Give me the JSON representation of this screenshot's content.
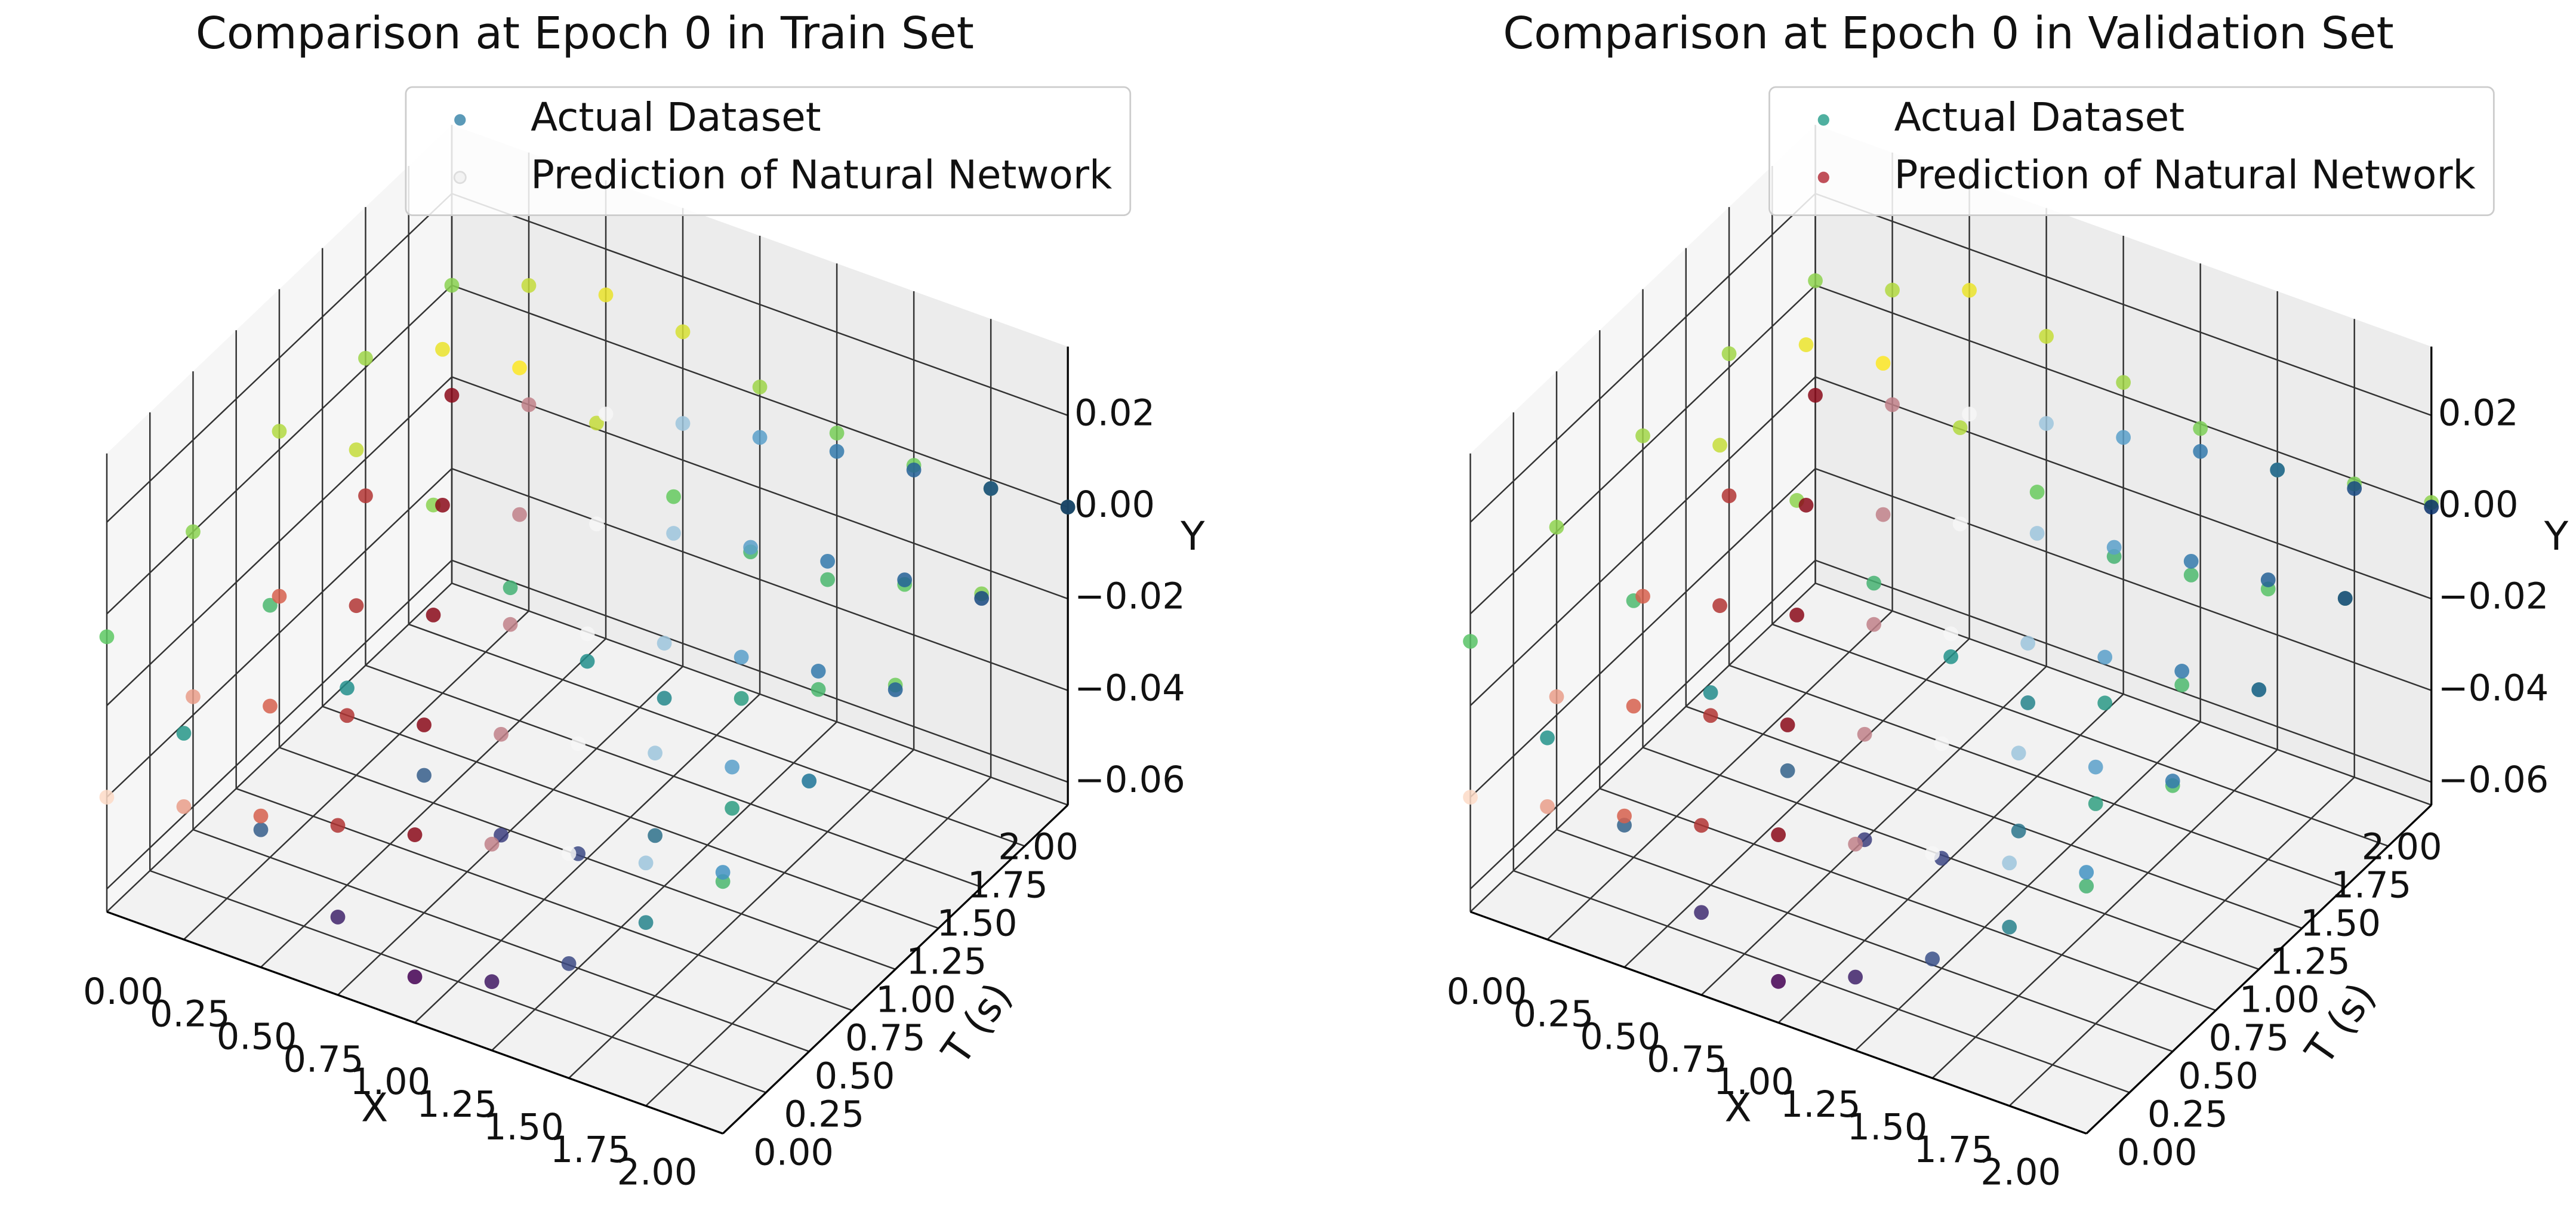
{
  "chart_data": [
    {
      "type": "scatter3d",
      "title": "Comparison at Epoch 0 in Train Set",
      "xlabel": "X",
      "tlabel": "T (s)",
      "ylabel": "Y",
      "xlim": [
        0,
        2
      ],
      "tlim": [
        0,
        2
      ],
      "ylim": [
        -0.065,
        0.035
      ],
      "xticks": [
        {
          "value": 0,
          "label": "0.00"
        },
        {
          "value": 0.25,
          "label": "0.25"
        },
        {
          "value": 0.5,
          "label": "0.50"
        },
        {
          "value": 0.75,
          "label": "0.75"
        },
        {
          "value": 1,
          "label": "1.00"
        },
        {
          "value": 1.25,
          "label": "1.25"
        },
        {
          "value": 1.5,
          "label": "1.50"
        },
        {
          "value": 1.75,
          "label": "1.75"
        },
        {
          "value": 2,
          "label": "2.00"
        }
      ],
      "tticks": [
        {
          "value": 0,
          "label": "0.00"
        },
        {
          "value": 0.25,
          "label": "0.25"
        },
        {
          "value": 0.5,
          "label": "0.50"
        },
        {
          "value": 0.75,
          "label": "0.75"
        },
        {
          "value": 1,
          "label": "1.00"
        },
        {
          "value": 1.25,
          "label": "1.25"
        },
        {
          "value": 1.5,
          "label": "1.50"
        },
        {
          "value": 1.75,
          "label": "1.75"
        },
        {
          "value": 2,
          "label": "2.00"
        }
      ],
      "yticks": [
        {
          "value": -0.06,
          "label": "−0.06"
        },
        {
          "value": -0.04,
          "label": "−0.04"
        },
        {
          "value": -0.02,
          "label": "−0.02"
        },
        {
          "value": 0,
          "label": "0.00"
        },
        0.02
      ],
      "series": [
        {
          "name": "Actual Dataset",
          "color": "#5b9ab8",
          "colormap": "viridis",
          "x": [
            0,
            0.25,
            0.5,
            0.75,
            1,
            1.25,
            1.5,
            1.75,
            2,
            0,
            0.25,
            0.5,
            0.75,
            1,
            1.25,
            1.5,
            1.75,
            2,
            0,
            0.25,
            0.5,
            0.75,
            1,
            1.25,
            1.5,
            1.75,
            2,
            0,
            0.25,
            0.5,
            0.75,
            1,
            1.25,
            1.5,
            1.75,
            2,
            0,
            0.25,
            0.5,
            0.75,
            1,
            1.25,
            1.5,
            1.75,
            2
          ],
          "t": [
            0,
            0,
            0,
            0,
            0,
            0,
            0,
            0,
            0,
            0.5,
            0.5,
            0.5,
            0.5,
            0.5,
            0.5,
            0.5,
            0.5,
            0.5,
            1,
            1,
            1,
            1,
            1,
            1,
            1,
            1,
            1,
            1.5,
            1.5,
            1.5,
            1.5,
            1.5,
            1.5,
            1.5,
            1.5,
            1.5,
            2,
            2,
            2,
            2,
            2,
            2,
            2,
            2,
            2
          ],
          "values": [
            -0.005,
            -0.02,
            -0.035,
            -0.048,
            -0.055,
            -0.05,
            -0.04,
            -0.025,
            -0.01,
            0,
            -0.01,
            -0.022,
            -0.035,
            -0.042,
            -0.04,
            -0.03,
            -0.018,
            -0.006,
            0.004,
            0.006,
            0,
            -0.012,
            -0.022,
            -0.024,
            -0.018,
            -0.01,
            -0.003,
            0.002,
            0.01,
            0.012,
            0.006,
            -0.004,
            -0.01,
            -0.01,
            -0.005,
            -0.001,
            0,
            0.006,
            0.01,
            0.008,
            0.002,
            -0.002,
            -0.003,
            -0.002,
            0
          ]
        },
        {
          "name": "Prediction of Natural Network",
          "color": "#f3f3f3",
          "colormap": "RdBu",
          "x": [
            0,
            0.25,
            0.5,
            0.75,
            1,
            1.25,
            1.5,
            1.75,
            2,
            0,
            0.25,
            0.5,
            0.75,
            1,
            1.25,
            1.5,
            1.75,
            2,
            0,
            0.25,
            0.5,
            0.75,
            1,
            1.25,
            1.5,
            1.75,
            2,
            0,
            0.25,
            0.5,
            0.75,
            1,
            1.25,
            1.5,
            1.75,
            2,
            0,
            0.25,
            0.5,
            0.75,
            1,
            1.25,
            1.5,
            1.75,
            2
          ],
          "t": [
            0,
            0,
            0,
            0,
            0,
            0,
            0,
            0,
            0,
            0.5,
            0.5,
            0.5,
            0.5,
            0.5,
            0.5,
            0.5,
            0.5,
            0.5,
            1,
            1,
            1,
            1,
            1,
            1,
            1,
            1,
            1,
            1.5,
            1.5,
            1.5,
            1.5,
            1.5,
            1.5,
            1.5,
            1.5,
            1.5,
            2,
            2,
            2,
            2,
            2,
            2,
            2,
            2,
            2
          ],
          "values": [
            -0.04,
            -0.036,
            -0.032,
            -0.028,
            -0.024,
            -0.02,
            -0.016,
            -0.012,
            -0.008,
            -0.036,
            -0.032,
            -0.028,
            -0.024,
            -0.02,
            -0.016,
            -0.012,
            -0.009,
            -0.006,
            -0.032,
            -0.028,
            -0.024,
            -0.02,
            -0.016,
            -0.012,
            -0.009,
            -0.006,
            -0.004,
            -0.028,
            -0.024,
            -0.02,
            -0.016,
            -0.012,
            -0.009,
            -0.006,
            -0.004,
            -0.002,
            -0.024,
            -0.02,
            -0.016,
            -0.012,
            -0.009,
            -0.006,
            -0.004,
            -0.002,
            0
          ]
        }
      ]
    },
    {
      "type": "scatter3d",
      "title": "Comparison at Epoch 0 in Validation Set",
      "xlabel": "X",
      "tlabel": "T (s)",
      "ylabel": "Y",
      "xlim": [
        0,
        2
      ],
      "tlim": [
        0,
        2
      ],
      "ylim": [
        -0.065,
        0.035
      ],
      "xticks": [
        {
          "value": 0,
          "label": "0.00"
        },
        {
          "value": 0.25,
          "label": "0.25"
        },
        {
          "value": 0.5,
          "label": "0.50"
        },
        {
          "value": 0.75,
          "label": "0.75"
        },
        {
          "value": 1,
          "label": "1.00"
        },
        {
          "value": 1.25,
          "label": "1.25"
        },
        {
          "value": 1.5,
          "label": "1.50"
        },
        {
          "value": 1.75,
          "label": "1.75"
        },
        {
          "value": 2,
          "label": "2.00"
        }
      ],
      "tticks": [
        {
          "value": 0,
          "label": "0.00"
        },
        {
          "value": 0.25,
          "label": "0.25"
        },
        {
          "value": 0.5,
          "label": "0.50"
        },
        {
          "value": 0.75,
          "label": "0.75"
        },
        {
          "value": 1,
          "label": "1.00"
        },
        {
          "value": 1.25,
          "label": "1.25"
        },
        {
          "value": 1.5,
          "label": "1.50"
        },
        {
          "value": 1.75,
          "label": "1.75"
        },
        {
          "value": 2,
          "label": "2.00"
        }
      ],
      "yticks": [
        {
          "value": -0.06,
          "label": "−0.06"
        },
        {
          "value": -0.04,
          "label": "−0.04"
        },
        {
          "value": -0.02,
          "label": "−0.02"
        },
        {
          "value": 0,
          "label": "0.00"
        },
        0.02
      ],
      "series": [
        {
          "name": "Actual Dataset",
          "color": "#4fb0a0",
          "colormap": "viridis",
          "x": [
            0,
            0.25,
            0.5,
            0.75,
            1,
            1.25,
            1.5,
            1.75,
            2,
            0,
            0.25,
            0.5,
            0.75,
            1,
            1.25,
            1.5,
            1.75,
            2,
            0,
            0.25,
            0.5,
            0.75,
            1,
            1.25,
            1.5,
            1.75,
            2,
            0,
            0.25,
            0.5,
            0.75,
            1,
            1.25,
            1.5,
            1.75,
            2,
            0,
            0.25,
            0.5,
            0.75,
            1,
            1.25,
            1.5,
            1.75,
            2
          ],
          "t": [
            0,
            0,
            0,
            0,
            0,
            0,
            0,
            0,
            0,
            0.5,
            0.5,
            0.5,
            0.5,
            0.5,
            0.5,
            0.5,
            0.5,
            0.5,
            1,
            1,
            1,
            1,
            1,
            1,
            1,
            1,
            1,
            1.5,
            1.5,
            1.5,
            1.5,
            1.5,
            1.5,
            1.5,
            1.5,
            1.5,
            2,
            2,
            2,
            2,
            2,
            2,
            2,
            2,
            2
          ],
          "values": [
            -0.006,
            -0.021,
            -0.034,
            -0.047,
            -0.056,
            -0.049,
            -0.039,
            -0.026,
            -0.011,
            0.001,
            -0.009,
            -0.023,
            -0.034,
            -0.043,
            -0.041,
            -0.029,
            -0.017,
            -0.007,
            0.003,
            0.007,
            0.001,
            -0.011,
            -0.021,
            -0.025,
            -0.019,
            -0.009,
            -0.004,
            0.003,
            0.011,
            0.013,
            0.005,
            -0.003,
            -0.011,
            -0.009,
            -0.006,
            -0.002,
            0.001,
            0.005,
            0.011,
            0.007,
            0.003,
            -0.001,
            -0.004,
            -0.001,
            0.001
          ]
        },
        {
          "name": "Prediction of Natural Network",
          "color": "#c0505a",
          "colormap": "RdBu",
          "x": [
            0,
            0.25,
            0.5,
            0.75,
            1,
            1.25,
            1.5,
            1.75,
            2,
            0,
            0.25,
            0.5,
            0.75,
            1,
            1.25,
            1.5,
            1.75,
            2,
            0,
            0.25,
            0.5,
            0.75,
            1,
            1.25,
            1.5,
            1.75,
            2,
            0,
            0.25,
            0.5,
            0.75,
            1,
            1.25,
            1.5,
            1.75,
            2,
            0,
            0.25,
            0.5,
            0.75,
            1,
            1.25,
            1.5,
            1.75,
            2
          ],
          "t": [
            0,
            0,
            0,
            0,
            0,
            0,
            0,
            0,
            0,
            0.5,
            0.5,
            0.5,
            0.5,
            0.5,
            0.5,
            0.5,
            0.5,
            0.5,
            1,
            1,
            1,
            1,
            1,
            1,
            1,
            1,
            1,
            1.5,
            1.5,
            1.5,
            1.5,
            1.5,
            1.5,
            1.5,
            1.5,
            1.5,
            2,
            2,
            2,
            2,
            2,
            2,
            2,
            2,
            2
          ],
          "values": [
            -0.04,
            -0.036,
            -0.032,
            -0.028,
            -0.024,
            -0.02,
            -0.016,
            -0.012,
            -0.008,
            -0.036,
            -0.032,
            -0.028,
            -0.024,
            -0.02,
            -0.016,
            -0.012,
            -0.009,
            -0.006,
            -0.032,
            -0.028,
            -0.024,
            -0.02,
            -0.016,
            -0.012,
            -0.009,
            -0.006,
            -0.004,
            -0.028,
            -0.024,
            -0.02,
            -0.016,
            -0.012,
            -0.009,
            -0.006,
            -0.004,
            -0.002,
            -0.024,
            -0.02,
            -0.016,
            -0.012,
            -0.009,
            -0.006,
            -0.004,
            -0.002,
            0
          ]
        }
      ]
    }
  ]
}
